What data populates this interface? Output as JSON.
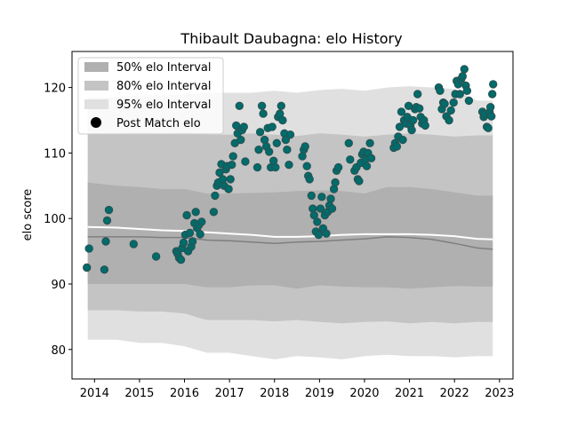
{
  "chart_data": {
    "type": "scatter",
    "title": "Thibault Daubagna: elo History",
    "xlabel": "",
    "ylabel": "elo score",
    "xlim": [
      2013.5,
      2023.3
    ],
    "ylim": [
      75.5,
      125.5
    ],
    "xticks": [
      2014,
      2015,
      2016,
      2017,
      2018,
      2019,
      2020,
      2021,
      2022,
      2023
    ],
    "yticks": [
      80,
      90,
      100,
      110,
      120
    ],
    "legend_position": "top-left",
    "legend": [
      {
        "label": "50% elo Interval",
        "kind": "band",
        "color": "#b0b0b0"
      },
      {
        "label": "80% elo Interval",
        "kind": "band",
        "color": "#c4c4c4"
      },
      {
        "label": "95% elo Interval",
        "kind": "band",
        "color": "#e0e0e0"
      },
      {
        "label": "Post Match elo",
        "kind": "marker",
        "color": "#000000"
      }
    ],
    "colors": {
      "band50": "#b0b0b0",
      "band80": "#c4c4c4",
      "band95": "#e0e0e0",
      "median_line": "#7f7f7f",
      "mean_line": "#ffffff",
      "point_fill": "#006b6b",
      "point_edge": "#2f4f4f"
    },
    "bands": {
      "x": [
        2013.85,
        2014.5,
        2015.0,
        2015.5,
        2016.0,
        2016.5,
        2017.0,
        2017.5,
        2018.0,
        2018.5,
        2019.0,
        2019.5,
        2020.0,
        2020.5,
        2021.0,
        2021.5,
        2022.0,
        2022.5,
        2022.85
      ],
      "p95_hi": [
        118.5,
        118.5,
        118.8,
        118.8,
        119.0,
        119.2,
        119.2,
        119.2,
        119.5,
        119.2,
        119.6,
        119.8,
        119.5,
        120.0,
        120.2,
        120.0,
        119.8,
        118.0,
        118.0
      ],
      "p80_hi": [
        113.0,
        113.0,
        113.2,
        113.0,
        113.2,
        112.8,
        112.8,
        113.0,
        112.8,
        112.6,
        113.0,
        112.8,
        112.5,
        112.8,
        113.0,
        112.8,
        112.5,
        112.7,
        112.7
      ],
      "p50_hi": [
        105.5,
        105.0,
        104.8,
        104.5,
        104.5,
        103.8,
        103.8,
        103.9,
        104.0,
        104.2,
        104.3,
        104.2,
        103.8,
        104.8,
        104.8,
        104.5,
        104.0,
        103.5,
        103.5
      ],
      "p50_lo": [
        90.0,
        90.0,
        90.0,
        90.0,
        90.0,
        89.5,
        89.5,
        89.8,
        89.8,
        89.3,
        89.8,
        89.6,
        89.5,
        89.5,
        89.3,
        89.5,
        89.7,
        89.6,
        89.6
      ],
      "p80_lo": [
        86.0,
        86.0,
        85.8,
        85.8,
        85.5,
        84.5,
        84.5,
        84.5,
        84.3,
        84.5,
        84.2,
        84.0,
        84.2,
        84.3,
        84.0,
        84.2,
        84.0,
        84.2,
        84.2
      ],
      "p95_lo": [
        81.5,
        81.5,
        81.0,
        81.0,
        80.5,
        79.5,
        79.5,
        79.0,
        78.5,
        79.0,
        78.8,
        78.5,
        79.0,
        79.2,
        79.0,
        79.0,
        78.8,
        79.0,
        79.0
      ],
      "median": [
        97.2,
        97.2,
        97.2,
        97.1,
        97.1,
        96.7,
        96.6,
        96.4,
        96.2,
        96.4,
        96.5,
        96.7,
        96.9,
        97.2,
        97.1,
        96.8,
        96.2,
        95.5,
        95.3
      ],
      "mean": [
        98.7,
        98.6,
        98.4,
        98.2,
        98.1,
        97.9,
        97.7,
        97.5,
        97.2,
        97.2,
        97.3,
        97.5,
        97.6,
        97.6,
        97.6,
        97.5,
        97.3,
        96.9,
        96.8
      ]
    },
    "points": [
      [
        2013.83,
        92.5
      ],
      [
        2013.88,
        95.4
      ],
      [
        2014.22,
        92.2
      ],
      [
        2014.25,
        96.5
      ],
      [
        2014.28,
        99.7
      ],
      [
        2014.32,
        101.3
      ],
      [
        2014.87,
        96.1
      ],
      [
        2015.37,
        94.2
      ],
      [
        2015.82,
        95.0
      ],
      [
        2015.85,
        94.6
      ],
      [
        2015.88,
        94.0
      ],
      [
        2015.92,
        93.7
      ],
      [
        2015.95,
        95.5
      ],
      [
        2015.98,
        96.3
      ],
      [
        2016.02,
        97.5
      ],
      [
        2016.05,
        100.5
      ],
      [
        2016.08,
        95.0
      ],
      [
        2016.12,
        97.8
      ],
      [
        2016.15,
        95.7
      ],
      [
        2016.18,
        96.5
      ],
      [
        2016.22,
        99.3
      ],
      [
        2016.25,
        101.0
      ],
      [
        2016.28,
        98.5
      ],
      [
        2016.32,
        99.0
      ],
      [
        2016.35,
        97.6
      ],
      [
        2016.38,
        99.5
      ],
      [
        2016.65,
        101.0
      ],
      [
        2016.68,
        103.5
      ],
      [
        2016.72,
        105.0
      ],
      [
        2016.75,
        105.5
      ],
      [
        2016.78,
        107.0
      ],
      [
        2016.82,
        108.3
      ],
      [
        2016.85,
        106.0
      ],
      [
        2016.88,
        105.0
      ],
      [
        2016.92,
        107.5
      ],
      [
        2016.95,
        108.0
      ],
      [
        2016.98,
        104.5
      ],
      [
        2017.02,
        106.0
      ],
      [
        2017.05,
        108.2
      ],
      [
        2017.08,
        109.5
      ],
      [
        2017.12,
        111.5
      ],
      [
        2017.15,
        114.2
      ],
      [
        2017.18,
        113.0
      ],
      [
        2017.22,
        117.2
      ],
      [
        2017.25,
        112.0
      ],
      [
        2017.28,
        113.5
      ],
      [
        2017.32,
        114.0
      ],
      [
        2017.35,
        108.7
      ],
      [
        2017.62,
        107.8
      ],
      [
        2017.65,
        110.5
      ],
      [
        2017.68,
        113.2
      ],
      [
        2017.72,
        117.2
      ],
      [
        2017.75,
        116.0
      ],
      [
        2017.78,
        112.0
      ],
      [
        2017.82,
        111.0
      ],
      [
        2017.85,
        113.8
      ],
      [
        2017.88,
        110.2
      ],
      [
        2017.92,
        107.8
      ],
      [
        2017.95,
        114.0
      ],
      [
        2017.98,
        108.8
      ],
      [
        2018.02,
        107.8
      ],
      [
        2018.05,
        111.5
      ],
      [
        2018.08,
        115.5
      ],
      [
        2018.12,
        116.0
      ],
      [
        2018.15,
        117.2
      ],
      [
        2018.18,
        115.0
      ],
      [
        2018.22,
        113.0
      ],
      [
        2018.25,
        112.0
      ],
      [
        2018.28,
        110.5
      ],
      [
        2018.32,
        108.2
      ],
      [
        2018.35,
        112.8
      ],
      [
        2018.62,
        109.5
      ],
      [
        2018.65,
        110.5
      ],
      [
        2018.68,
        111.0
      ],
      [
        2018.72,
        108.0
      ],
      [
        2018.75,
        106.5
      ],
      [
        2018.78,
        106.0
      ],
      [
        2018.82,
        103.5
      ],
      [
        2018.85,
        101.5
      ],
      [
        2018.88,
        100.5
      ],
      [
        2018.92,
        98.0
      ],
      [
        2018.95,
        99.5
      ],
      [
        2018.98,
        97.5
      ],
      [
        2019.02,
        101.5
      ],
      [
        2019.05,
        103.3
      ],
      [
        2019.08,
        98.5
      ],
      [
        2019.12,
        100.5
      ],
      [
        2019.15,
        97.7
      ],
      [
        2019.18,
        101.0
      ],
      [
        2019.22,
        102.0
      ],
      [
        2019.25,
        103.0
      ],
      [
        2019.28,
        101.5
      ],
      [
        2019.32,
        104.5
      ],
      [
        2019.35,
        105.5
      ],
      [
        2019.38,
        107.3
      ],
      [
        2019.42,
        107.8
      ],
      [
        2019.65,
        111.5
      ],
      [
        2019.68,
        109.0
      ],
      [
        2019.78,
        107.3
      ],
      [
        2019.82,
        107.8
      ],
      [
        2019.85,
        106.0
      ],
      [
        2019.88,
        105.7
      ],
      [
        2019.92,
        108.5
      ],
      [
        2019.95,
        109.8
      ],
      [
        2019.98,
        110.2
      ],
      [
        2020.02,
        109.0
      ],
      [
        2020.05,
        108.0
      ],
      [
        2020.08,
        110.0
      ],
      [
        2020.12,
        111.5
      ],
      [
        2020.15,
        109.2
      ],
      [
        2020.65,
        110.8
      ],
      [
        2020.68,
        111.5
      ],
      [
        2020.72,
        111.0
      ],
      [
        2020.75,
        112.5
      ],
      [
        2020.78,
        114.0
      ],
      [
        2020.82,
        116.3
      ],
      [
        2020.85,
        112.0
      ],
      [
        2020.88,
        115.0
      ],
      [
        2020.92,
        114.5
      ],
      [
        2020.95,
        115.5
      ],
      [
        2020.98,
        117.2
      ],
      [
        2021.02,
        114.2
      ],
      [
        2021.05,
        113.5
      ],
      [
        2021.08,
        115.0
      ],
      [
        2021.12,
        116.7
      ],
      [
        2021.15,
        117.0
      ],
      [
        2021.18,
        119.0
      ],
      [
        2021.22,
        116.8
      ],
      [
        2021.25,
        115.5
      ],
      [
        2021.28,
        114.5
      ],
      [
        2021.32,
        115.0
      ],
      [
        2021.35,
        114.2
      ],
      [
        2021.65,
        120.0
      ],
      [
        2021.68,
        119.5
      ],
      [
        2021.72,
        116.7
      ],
      [
        2021.75,
        117.7
      ],
      [
        2021.78,
        117.5
      ],
      [
        2021.82,
        115.6
      ],
      [
        2021.88,
        115.0
      ],
      [
        2021.92,
        116.5
      ],
      [
        2021.98,
        117.7
      ],
      [
        2022.02,
        119.0
      ],
      [
        2022.05,
        121.0
      ],
      [
        2022.08,
        120.5
      ],
      [
        2022.12,
        119.0
      ],
      [
        2022.15,
        121.3
      ],
      [
        2022.18,
        121.7
      ],
      [
        2022.22,
        122.8
      ],
      [
        2022.25,
        120.3
      ],
      [
        2022.28,
        119.5
      ],
      [
        2022.32,
        118.0
      ],
      [
        2022.62,
        116.3
      ],
      [
        2022.65,
        115.5
      ],
      [
        2022.68,
        115.9
      ],
      [
        2022.72,
        114.0
      ],
      [
        2022.75,
        113.8
      ],
      [
        2022.78,
        116.2
      ],
      [
        2022.8,
        117.0
      ],
      [
        2022.82,
        115.6
      ],
      [
        2022.84,
        119.0
      ],
      [
        2022.86,
        120.5
      ]
    ]
  }
}
